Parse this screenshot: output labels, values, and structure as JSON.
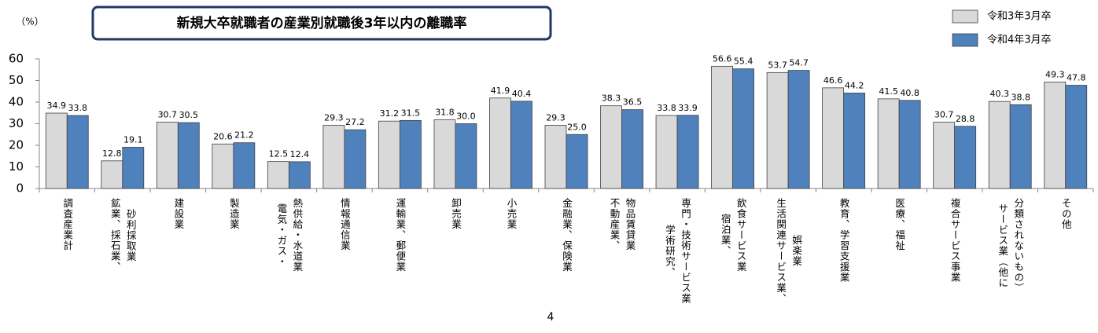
{
  "chart_data": {
    "type": "bar",
    "title": "新規大卒就職者の産業別就職後3年以内の離職率",
    "y_unit": "（%）",
    "page_number": "4",
    "categories": [
      "調査産業計",
      "鉱業、採石業、\n砂利採取業",
      "建設業",
      "製造業",
      "電気・ガス・\n熱供給・水道業",
      "情報通信業",
      "運輸業、郵便業",
      "卸売業",
      "小売業",
      "金融業、保険業",
      "不動産業、\n物品賃貸業",
      "学術研究、\n専門・技術サービス業",
      "宿泊業、\n飲食サービス業",
      "生活関連サービス業、\n娯楽業",
      "教育、学習支援業",
      "医療、福祉",
      "複合サービス事業",
      "サービス業（他に\n分類されないもの）",
      "その他"
    ],
    "series": [
      {
        "name": "令和3年3月卒",
        "color": "#d9d9d9",
        "values": [
          34.9,
          12.8,
          30.7,
          20.6,
          12.5,
          29.3,
          31.2,
          31.8,
          41.9,
          29.3,
          38.3,
          33.8,
          56.6,
          53.7,
          46.6,
          41.5,
          30.7,
          40.3,
          49.3
        ],
        "value_labels": [
          "34.9",
          "12.8",
          "30.7",
          "20.6",
          "12.5",
          "29.3",
          "31.2",
          "31.8",
          "41.9",
          "29.3",
          "38.3",
          "33.8",
          "56.6",
          "53.7",
          "46.6",
          "41.5",
          "30.7",
          "40.3",
          "49.3"
        ]
      },
      {
        "name": "令和4年3月卒",
        "color": "#4f81bd",
        "values": [
          33.8,
          19.1,
          30.5,
          21.2,
          12.4,
          27.2,
          31.5,
          30.0,
          40.4,
          25.0,
          36.5,
          33.9,
          55.4,
          54.7,
          44.2,
          40.8,
          28.8,
          38.8,
          47.8
        ],
        "value_labels": [
          "33.8",
          "19.1",
          "30.5",
          "21.2",
          "12.4",
          "27.2",
          "31.5",
          "30.0",
          "40.4",
          "25.0",
          "36.5",
          "33.9",
          "55.4",
          "54.7",
          "44.2",
          "40.8",
          "28.8",
          "38.8",
          "47.8"
        ]
      }
    ],
    "ylim": [
      0,
      60
    ],
    "yticks": [
      0,
      10,
      20,
      30,
      40,
      50,
      60
    ],
    "grid": false,
    "legend": "top-right"
  }
}
